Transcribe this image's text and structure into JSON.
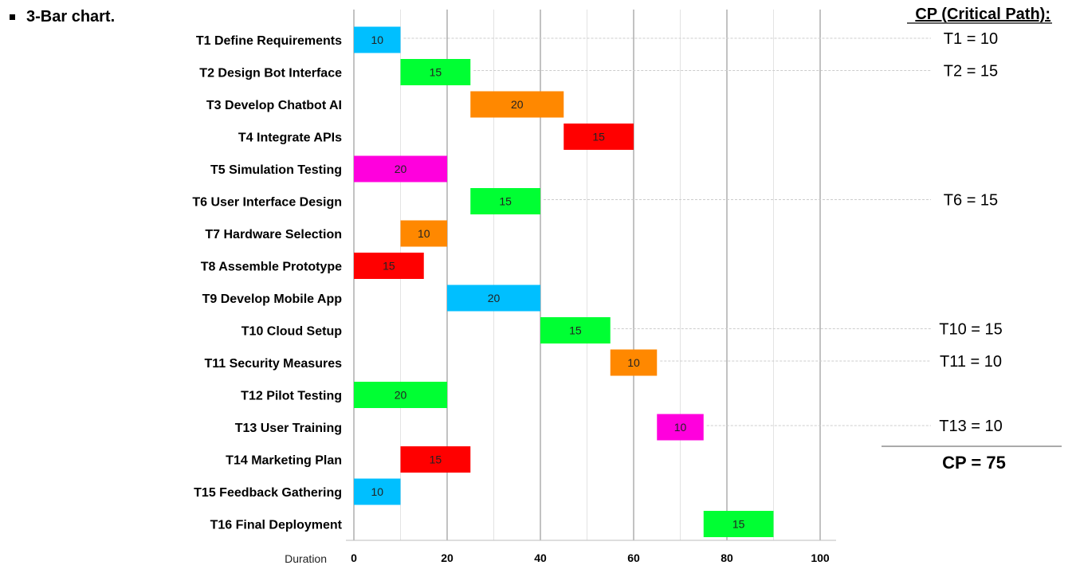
{
  "heading": "3-Bar chart.",
  "chart_data": {
    "type": "bar",
    "orientation": "horizontal-gantt",
    "xlabel": "Duration",
    "xlim": [
      0,
      100
    ],
    "x_ticks": [
      0,
      20,
      40,
      60,
      80,
      100
    ],
    "grid": true,
    "tasks": [
      {
        "name": "T1 Define Requirements",
        "start": 0,
        "duration": 10,
        "color": "#00bfff"
      },
      {
        "name": "T2 Design Bot Interface",
        "start": 10,
        "duration": 15,
        "color": "#00ff33"
      },
      {
        "name": "T3 Develop Chatbot AI",
        "start": 25,
        "duration": 20,
        "color": "#ff8800"
      },
      {
        "name": "T4 Integrate APIs",
        "start": 45,
        "duration": 15,
        "color": "#ff0000"
      },
      {
        "name": "T5 Simulation Testing",
        "start": 0,
        "duration": 20,
        "color": "#ff00dd"
      },
      {
        "name": "T6 User Interface Design",
        "start": 25,
        "duration": 15,
        "color": "#00ff33"
      },
      {
        "name": "T7 Hardware Selection",
        "start": 10,
        "duration": 10,
        "color": "#ff8800"
      },
      {
        "name": "T8 Assemble Prototype",
        "start": 0,
        "duration": 15,
        "color": "#ff0000"
      },
      {
        "name": "T9 Develop Mobile App",
        "start": 20,
        "duration": 20,
        "color": "#00bfff"
      },
      {
        "name": "T10 Cloud Setup",
        "start": 40,
        "duration": 15,
        "color": "#00ff33"
      },
      {
        "name": "T11 Security Measures",
        "start": 55,
        "duration": 10,
        "color": "#ff8800"
      },
      {
        "name": "T12 Pilot Testing",
        "start": 0,
        "duration": 20,
        "color": "#00ff33"
      },
      {
        "name": "T13 User Training",
        "start": 65,
        "duration": 10,
        "color": "#ff00dd"
      },
      {
        "name": "T14 Marketing Plan",
        "start": 10,
        "duration": 15,
        "color": "#ff0000"
      },
      {
        "name": "T15 Feedback Gathering",
        "start": 0,
        "duration": 10,
        "color": "#00bfff"
      },
      {
        "name": "T16 Final Deployment",
        "start": 75,
        "duration": 15,
        "color": "#00ff33"
      }
    ]
  },
  "critical_path": {
    "title": "CP (Critical Path):",
    "items": [
      {
        "task_index": 0,
        "label": "T1 = 10"
      },
      {
        "task_index": 1,
        "label": "T2 = 15"
      },
      {
        "task_index": 5,
        "label": "T6 = 15"
      },
      {
        "task_index": 9,
        "label": "T10 = 15"
      },
      {
        "task_index": 10,
        "label": "T11 = 10"
      },
      {
        "task_index": 12,
        "label": "T13 = 10"
      }
    ],
    "total": "CP = 75"
  }
}
